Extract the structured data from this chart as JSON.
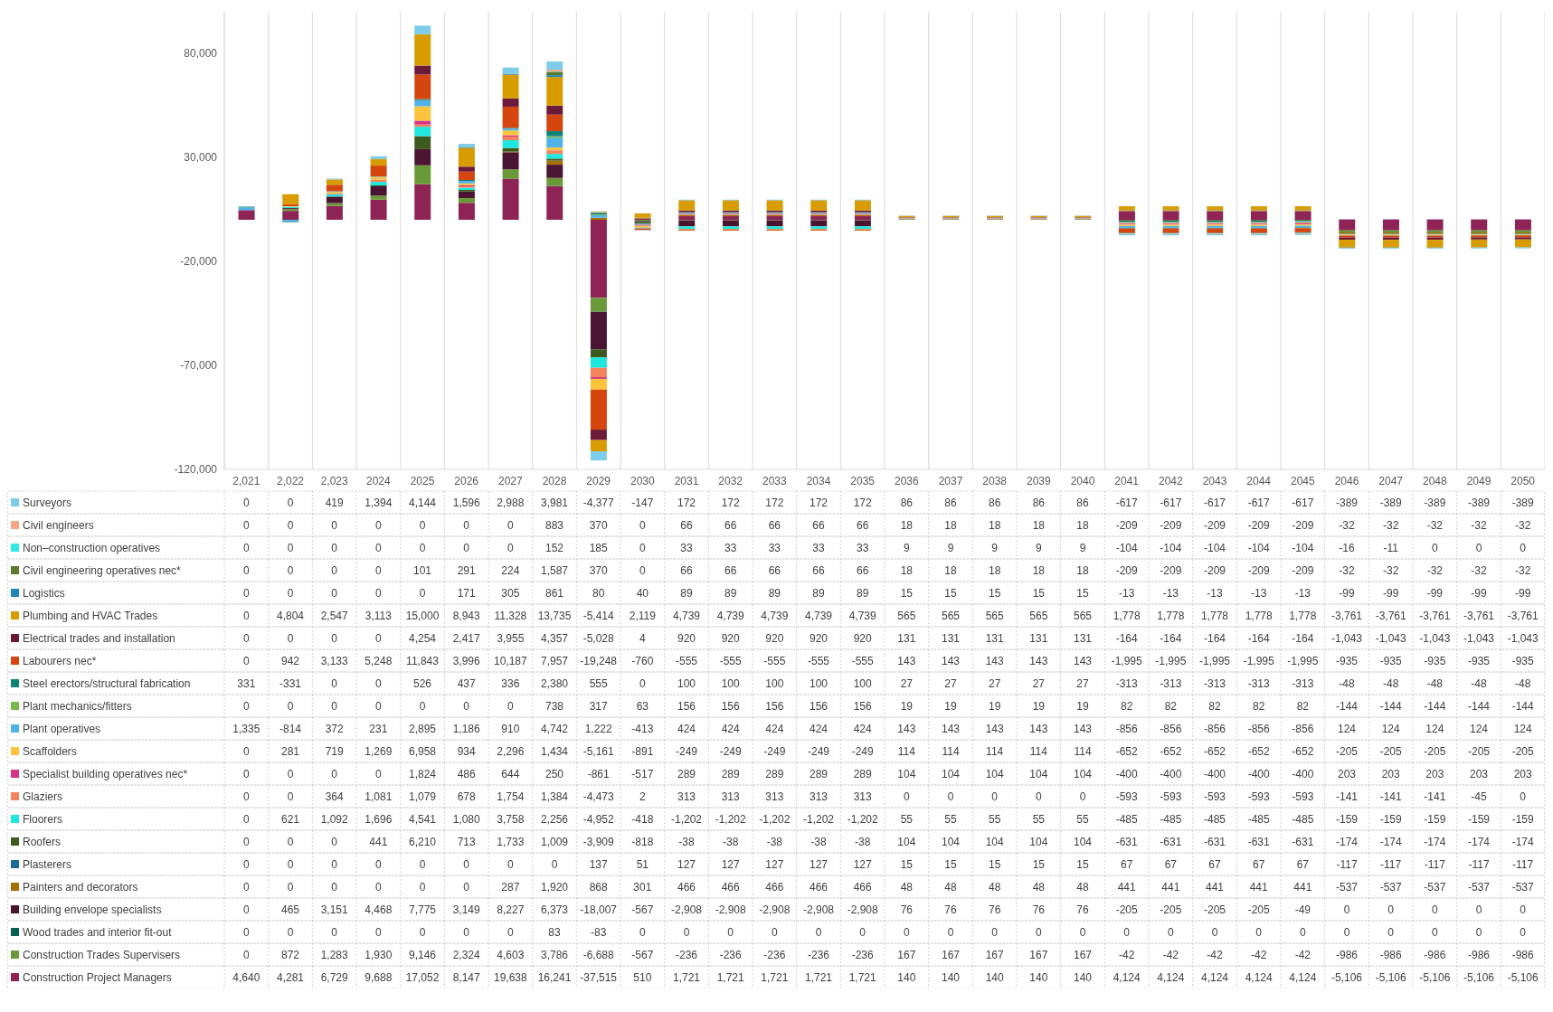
{
  "chart_data": {
    "type": "bar",
    "stacked": true,
    "legend": "bottom",
    "grid": "x",
    "categories": [
      "2,021",
      "2,022",
      "2,023",
      "2024",
      "2025",
      "2026",
      "2027",
      "2028",
      "2029",
      "2030",
      "2031",
      "2032",
      "2033",
      "2034",
      "2035",
      "2036",
      "2037",
      "2038",
      "2039",
      "2040",
      "2041",
      "2042",
      "2043",
      "2044",
      "2045",
      "2046",
      "2047",
      "2048",
      "2049",
      "2050"
    ],
    "ylim": [
      -120000,
      100000
    ],
    "yticks": [
      {
        "value": -120000,
        "label": "-120,000"
      },
      {
        "value": -70000,
        "label": "-70,000"
      },
      {
        "value": -20000,
        "label": "-20,000"
      },
      {
        "value": 30000,
        "label": "30,000"
      },
      {
        "value": 80000,
        "label": "80,000"
      }
    ],
    "series": [
      {
        "name": "Construction Project Managers",
        "color": "#8e2456",
        "values": [
          4640,
          4281,
          6729,
          9688,
          17052,
          8147,
          19638,
          16241,
          -37515,
          510,
          1721,
          1721,
          1721,
          1721,
          1721,
          140,
          140,
          140,
          140,
          140,
          4124,
          4124,
          4124,
          4124,
          4124,
          -5106,
          -5106,
          -5106,
          -5106,
          -5106
        ],
        "value_labels": [
          "4,640",
          "4,281",
          "6,729",
          "9,688",
          "17,052",
          "8,147",
          "19,638",
          "16,241",
          "-37,515",
          "510",
          "1,721",
          "1,721",
          "1,721",
          "1,721",
          "1,721",
          "140",
          "140",
          "140",
          "140",
          "140",
          "4,124",
          "4,124",
          "4,124",
          "4,124",
          "4,124",
          "-5,106",
          "-5,106",
          "-5,106",
          "-5,106",
          "-5,106"
        ]
      },
      {
        "name": "Construction Trades Supervisers",
        "color": "#6a9a38",
        "values": [
          0,
          872,
          1283,
          1930,
          9146,
          2324,
          4603,
          3786,
          -6688,
          -567,
          -236,
          -236,
          -236,
          -236,
          -236,
          167,
          167,
          167,
          167,
          167,
          -42,
          -42,
          -42,
          -42,
          -42,
          -986,
          -986,
          -986,
          -986,
          -986
        ],
        "value_labels": [
          "0",
          "872",
          "1,283",
          "1,930",
          "9,146",
          "2,324",
          "4,603",
          "3,786",
          "-6,688",
          "-567",
          "-236",
          "-236",
          "-236",
          "-236",
          "-236",
          "167",
          "167",
          "167",
          "167",
          "167",
          "-42",
          "-42",
          "-42",
          "-42",
          "-42",
          "-986",
          "-986",
          "-986",
          "-986",
          "-986"
        ]
      },
      {
        "name": "Wood trades and interior fit-out",
        "color": "#0b5e54",
        "values": [
          0,
          0,
          0,
          0,
          0,
          0,
          0,
          83,
          -83,
          0,
          0,
          0,
          0,
          0,
          0,
          0,
          0,
          0,
          0,
          0,
          0,
          0,
          0,
          0,
          0,
          0,
          0,
          0,
          0,
          0
        ],
        "value_labels": [
          "0",
          "0",
          "0",
          "0",
          "0",
          "0",
          "0",
          "83",
          "-83",
          "0",
          "0",
          "0",
          "0",
          "0",
          "0",
          "0",
          "0",
          "0",
          "0",
          "0",
          "0",
          "0",
          "0",
          "0",
          "0",
          "0",
          "0",
          "0",
          "0",
          "0"
        ]
      },
      {
        "name": "Building envelope specialists",
        "color": "#4a1530",
        "values": [
          0,
          465,
          3151,
          4468,
          7775,
          3149,
          8227,
          6373,
          -18007,
          -567,
          -2908,
          -2908,
          -2908,
          -2908,
          -2908,
          76,
          76,
          76,
          76,
          76,
          -205,
          -205,
          -205,
          -205,
          -49,
          0,
          0,
          0,
          0,
          0
        ],
        "value_labels": [
          "0",
          "465",
          "3,151",
          "4,468",
          "7,775",
          "3,149",
          "8,227",
          "6,373",
          "-18,007",
          "-567",
          "-2,908",
          "-2,908",
          "-2,908",
          "-2,908",
          "-2,908",
          "76",
          "76",
          "76",
          "76",
          "76",
          "-205",
          "-205",
          "-205",
          "-205",
          "-49",
          "0",
          "0",
          "0",
          "0",
          "0"
        ]
      },
      {
        "name": "Painters and decorators",
        "color": "#a86f00",
        "values": [
          0,
          0,
          0,
          0,
          0,
          0,
          287,
          1920,
          868,
          301,
          466,
          466,
          466,
          466,
          466,
          48,
          48,
          48,
          48,
          48,
          441,
          441,
          441,
          441,
          441,
          -537,
          -537,
          -537,
          -537,
          -537
        ],
        "value_labels": [
          "0",
          "0",
          "0",
          "0",
          "0",
          "0",
          "287",
          "1,920",
          "868",
          "301",
          "466",
          "466",
          "466",
          "466",
          "466",
          "48",
          "48",
          "48",
          "48",
          "48",
          "441",
          "441",
          "441",
          "441",
          "441",
          "-537",
          "-537",
          "-537",
          "-537",
          "-537"
        ]
      },
      {
        "name": "Plasterers",
        "color": "#1c6b94",
        "values": [
          0,
          0,
          0,
          0,
          0,
          0,
          0,
          0,
          137,
          51,
          127,
          127,
          127,
          127,
          127,
          15,
          15,
          15,
          15,
          15,
          67,
          67,
          67,
          67,
          67,
          -117,
          -117,
          -117,
          -117,
          -117
        ],
        "value_labels": [
          "0",
          "0",
          "0",
          "0",
          "0",
          "0",
          "0",
          "0",
          "137",
          "51",
          "127",
          "127",
          "127",
          "127",
          "127",
          "15",
          "15",
          "15",
          "15",
          "15",
          "67",
          "67",
          "67",
          "67",
          "67",
          "-117",
          "-117",
          "-117",
          "-117",
          "-117"
        ]
      },
      {
        "name": "Roofers",
        "color": "#3d5a1e",
        "values": [
          0,
          0,
          0,
          441,
          6210,
          713,
          1733,
          1009,
          -3909,
          -818,
          -38,
          -38,
          -38,
          -38,
          -38,
          104,
          104,
          104,
          104,
          104,
          -631,
          -631,
          -631,
          -631,
          -631,
          -174,
          -174,
          -174,
          -174,
          -174
        ],
        "value_labels": [
          "0",
          "0",
          "0",
          "441",
          "6,210",
          "713",
          "1,733",
          "1,009",
          "-3,909",
          "-818",
          "-38",
          "-38",
          "-38",
          "-38",
          "-38",
          "104",
          "104",
          "104",
          "104",
          "104",
          "-631",
          "-631",
          "-631",
          "-631",
          "-631",
          "-174",
          "-174",
          "-174",
          "-174",
          "-174"
        ]
      },
      {
        "name": "Floorers",
        "color": "#1ee6e0",
        "values": [
          0,
          621,
          1092,
          1696,
          4541,
          1080,
          3758,
          2256,
          -4952,
          -418,
          -1202,
          -1202,
          -1202,
          -1202,
          -1202,
          55,
          55,
          55,
          55,
          55,
          -485,
          -485,
          -485,
          -485,
          -485,
          -159,
          -159,
          -159,
          -159,
          -159
        ],
        "value_labels": [
          "0",
          "621",
          "1,092",
          "1,696",
          "4,541",
          "1,080",
          "3,758",
          "2,256",
          "-4,952",
          "-418",
          "-1,202",
          "-1,202",
          "-1,202",
          "-1,202",
          "-1,202",
          "55",
          "55",
          "55",
          "55",
          "55",
          "-485",
          "-485",
          "-485",
          "-485",
          "-485",
          "-159",
          "-159",
          "-159",
          "-159",
          "-159"
        ]
      },
      {
        "name": "Glaziers",
        "color": "#f4845c",
        "values": [
          0,
          0,
          364,
          1081,
          1079,
          678,
          1754,
          1384,
          -4473,
          2,
          313,
          313,
          313,
          313,
          313,
          0,
          0,
          0,
          0,
          0,
          -593,
          -593,
          -593,
          -593,
          -593,
          -141,
          -141,
          -141,
          -45,
          0
        ],
        "value_labels": [
          "0",
          "0",
          "364",
          "1,081",
          "1,079",
          "678",
          "1,754",
          "1,384",
          "-4,473",
          "2",
          "313",
          "313",
          "313",
          "313",
          "313",
          "0",
          "0",
          "0",
          "0",
          "0",
          "-593",
          "-593",
          "-593",
          "-593",
          "-593",
          "-141",
          "-141",
          "-141",
          "-45",
          "0"
        ]
      },
      {
        "name": "Specialist building operatives nec*",
        "color": "#d63384",
        "values": [
          0,
          0,
          0,
          0,
          1824,
          486,
          644,
          250,
          -861,
          -517,
          289,
          289,
          289,
          289,
          289,
          104,
          104,
          104,
          104,
          104,
          -400,
          -400,
          -400,
          -400,
          -400,
          203,
          203,
          203,
          203,
          203
        ],
        "value_labels": [
          "0",
          "0",
          "0",
          "0",
          "1,824",
          "486",
          "644",
          "250",
          "-861",
          "-517",
          "289",
          "289",
          "289",
          "289",
          "289",
          "104",
          "104",
          "104",
          "104",
          "104",
          "-400",
          "-400",
          "-400",
          "-400",
          "-400",
          "203",
          "203",
          "203",
          "203",
          "203"
        ]
      },
      {
        "name": "Scaffolders",
        "color": "#fcc43c",
        "values": [
          0,
          281,
          719,
          1269,
          6958,
          934,
          2296,
          1434,
          -5161,
          -891,
          -249,
          -249,
          -249,
          -249,
          -249,
          114,
          114,
          114,
          114,
          114,
          -652,
          -652,
          -652,
          -652,
          -652,
          -205,
          -205,
          -205,
          -205,
          -205
        ],
        "value_labels": [
          "0",
          "281",
          "719",
          "1,269",
          "6,958",
          "934",
          "2,296",
          "1,434",
          "-5,161",
          "-891",
          "-249",
          "-249",
          "-249",
          "-249",
          "-249",
          "114",
          "114",
          "114",
          "114",
          "114",
          "-652",
          "-652",
          "-652",
          "-652",
          "-652",
          "-205",
          "-205",
          "-205",
          "-205",
          "-205"
        ]
      },
      {
        "name": "Plant operatives",
        "color": "#4fb3e8",
        "values": [
          1335,
          -814,
          372,
          231,
          2895,
          1186,
          910,
          4742,
          1222,
          -413,
          424,
          424,
          424,
          424,
          424,
          143,
          143,
          143,
          143,
          143,
          -856,
          -856,
          -856,
          -856,
          -856,
          124,
          124,
          124,
          124,
          124
        ],
        "value_labels": [
          "1,335",
          "-814",
          "372",
          "231",
          "2,895",
          "1,186",
          "910",
          "4,742",
          "1,222",
          "-413",
          "424",
          "424",
          "424",
          "424",
          "424",
          "143",
          "143",
          "143",
          "143",
          "143",
          "-856",
          "-856",
          "-856",
          "-856",
          "-856",
          "124",
          "124",
          "124",
          "124",
          "124"
        ]
      },
      {
        "name": "Plant mechanics/fitters",
        "color": "#7ab648",
        "values": [
          0,
          0,
          0,
          0,
          0,
          0,
          0,
          738,
          317,
          63,
          156,
          156,
          156,
          156,
          156,
          19,
          19,
          19,
          19,
          19,
          82,
          82,
          82,
          82,
          82,
          -144,
          -144,
          -144,
          -144,
          -144
        ],
        "value_labels": [
          "0",
          "0",
          "0",
          "0",
          "0",
          "0",
          "0",
          "738",
          "317",
          "63",
          "156",
          "156",
          "156",
          "156",
          "156",
          "19",
          "19",
          "19",
          "19",
          "19",
          "82",
          "82",
          "82",
          "82",
          "82",
          "-144",
          "-144",
          "-144",
          "-144",
          "-144"
        ]
      },
      {
        "name": "Steel erectors/structural fabrication",
        "color": "#0f8278",
        "values": [
          331,
          -331,
          0,
          0,
          526,
          437,
          336,
          2380,
          555,
          0,
          100,
          100,
          100,
          100,
          100,
          27,
          27,
          27,
          27,
          27,
          -313,
          -313,
          -313,
          -313,
          -313,
          -48,
          -48,
          -48,
          -48,
          -48
        ],
        "value_labels": [
          "331",
          "-331",
          "0",
          "0",
          "526",
          "437",
          "336",
          "2,380",
          "555",
          "0",
          "100",
          "100",
          "100",
          "100",
          "100",
          "27",
          "27",
          "27",
          "27",
          "27",
          "-313",
          "-313",
          "-313",
          "-313",
          "-313",
          "-48",
          "-48",
          "-48",
          "-48",
          "-48"
        ]
      },
      {
        "name": "Labourers nec*",
        "color": "#d4460e",
        "values": [
          0,
          942,
          3133,
          5248,
          11843,
          3996,
          10187,
          7957,
          -19248,
          -760,
          -555,
          -555,
          -555,
          -555,
          -555,
          143,
          143,
          143,
          143,
          143,
          -1995,
          -1995,
          -1995,
          -1995,
          -1995,
          -935,
          -935,
          -935,
          -935,
          -935
        ],
        "value_labels": [
          "0",
          "942",
          "3,133",
          "5,248",
          "11,843",
          "3,996",
          "10,187",
          "7,957",
          "-19,248",
          "-760",
          "-555",
          "-555",
          "-555",
          "-555",
          "-555",
          "143",
          "143",
          "143",
          "143",
          "143",
          "-1,995",
          "-1,995",
          "-1,995",
          "-1,995",
          "-1,995",
          "-935",
          "-935",
          "-935",
          "-935",
          "-935"
        ]
      },
      {
        "name": "Electrical trades and installation",
        "color": "#6b1a3a",
        "values": [
          0,
          0,
          0,
          0,
          4254,
          2417,
          3955,
          4357,
          -5028,
          4,
          920,
          920,
          920,
          920,
          920,
          131,
          131,
          131,
          131,
          131,
          -164,
          -164,
          -164,
          -164,
          -164,
          -1043,
          -1043,
          -1043,
          -1043,
          -1043
        ],
        "value_labels": [
          "0",
          "0",
          "0",
          "0",
          "4,254",
          "2,417",
          "3,955",
          "4,357",
          "-5,028",
          "4",
          "920",
          "920",
          "920",
          "920",
          "920",
          "131",
          "131",
          "131",
          "131",
          "131",
          "-164",
          "-164",
          "-164",
          "-164",
          "-164",
          "-1,043",
          "-1,043",
          "-1,043",
          "-1,043",
          "-1,043"
        ]
      },
      {
        "name": "Plumbing and HVAC Trades",
        "color": "#d99c00",
        "values": [
          0,
          4804,
          2547,
          3113,
          15000,
          8943,
          11328,
          13735,
          -5414,
          2119,
          4739,
          4739,
          4739,
          4739,
          4739,
          565,
          565,
          565,
          565,
          565,
          1778,
          1778,
          1778,
          1778,
          1778,
          -3761,
          -3761,
          -3761,
          -3761,
          -3761
        ],
        "value_labels": [
          "0",
          "4,804",
          "2,547",
          "3,113",
          "15,000",
          "8,943",
          "11,328",
          "13,735",
          "-5,414",
          "2,119",
          "4,739",
          "4,739",
          "4,739",
          "4,739",
          "4,739",
          "565",
          "565",
          "565",
          "565",
          "565",
          "1,778",
          "1,778",
          "1,778",
          "1,778",
          "1,778",
          "-3,761",
          "-3,761",
          "-3,761",
          "-3,761",
          "-3,761"
        ]
      },
      {
        "name": "Logistics",
        "color": "#1f86b8",
        "values": [
          0,
          0,
          0,
          0,
          0,
          171,
          305,
          861,
          80,
          40,
          89,
          89,
          89,
          89,
          89,
          15,
          15,
          15,
          15,
          15,
          -13,
          -13,
          -13,
          -13,
          -13,
          -99,
          -99,
          -99,
          -99,
          -99
        ],
        "value_labels": [
          "0",
          "0",
          "0",
          "0",
          "0",
          "171",
          "305",
          "861",
          "80",
          "40",
          "89",
          "89",
          "89",
          "89",
          "89",
          "15",
          "15",
          "15",
          "15",
          "15",
          "-13",
          "-13",
          "-13",
          "-13",
          "-13",
          "-99",
          "-99",
          "-99",
          "-99",
          "-99"
        ]
      },
      {
        "name": "Civil engineering operatives nec*",
        "color": "#5a7a2e",
        "values": [
          0,
          0,
          0,
          0,
          101,
          291,
          224,
          1587,
          370,
          0,
          66,
          66,
          66,
          66,
          66,
          18,
          18,
          18,
          18,
          18,
          -209,
          -209,
          -209,
          -209,
          -209,
          -32,
          -32,
          -32,
          -32,
          -32
        ],
        "value_labels": [
          "0",
          "0",
          "0",
          "0",
          "101",
          "291",
          "224",
          "1,587",
          "370",
          "0",
          "66",
          "66",
          "66",
          "66",
          "66",
          "18",
          "18",
          "18",
          "18",
          "18",
          "-209",
          "-209",
          "-209",
          "-209",
          "-209",
          "-32",
          "-32",
          "-32",
          "-32",
          "-32"
        ]
      },
      {
        "name": "Non–construction operatives",
        "color": "#33e6e6",
        "values": [
          0,
          0,
          0,
          0,
          0,
          0,
          0,
          152,
          185,
          0,
          33,
          33,
          33,
          33,
          33,
          9,
          9,
          9,
          9,
          9,
          -104,
          -104,
          -104,
          -104,
          -104,
          -16,
          -11,
          0,
          0,
          0
        ],
        "value_labels": [
          "0",
          "0",
          "0",
          "0",
          "0",
          "0",
          "0",
          "152",
          "185",
          "0",
          "33",
          "33",
          "33",
          "33",
          "33",
          "9",
          "9",
          "9",
          "9",
          "9",
          "-104",
          "-104",
          "-104",
          "-104",
          "-104",
          "-16",
          "-11",
          "0",
          "0",
          "0"
        ]
      },
      {
        "name": "Civil engineers",
        "color": "#f4a582",
        "values": [
          0,
          0,
          0,
          0,
          0,
          0,
          0,
          883,
          370,
          0,
          66,
          66,
          66,
          66,
          66,
          18,
          18,
          18,
          18,
          18,
          -209,
          -209,
          -209,
          -209,
          -209,
          -32,
          -32,
          -32,
          -32,
          -32
        ],
        "value_labels": [
          "0",
          "0",
          "0",
          "0",
          "0",
          "0",
          "0",
          "883",
          "370",
          "0",
          "66",
          "66",
          "66",
          "66",
          "66",
          "18",
          "18",
          "18",
          "18",
          "18",
          "-209",
          "-209",
          "-209",
          "-209",
          "-209",
          "-32",
          "-32",
          "-32",
          "-32",
          "-32"
        ]
      },
      {
        "name": "Surveyors",
        "color": "#7dcdea",
        "values": [
          0,
          0,
          419,
          1394,
          4144,
          1596,
          2988,
          3981,
          -4377,
          -147,
          172,
          172,
          172,
          172,
          172,
          86,
          86,
          86,
          86,
          86,
          -617,
          -617,
          -617,
          -617,
          -617,
          -389,
          -389,
          -389,
          -389,
          -389
        ],
        "value_labels": [
          "0",
          "0",
          "419",
          "1,394",
          "4,144",
          "1,596",
          "2,988",
          "3,981",
          "-4,377",
          "-147",
          "172",
          "172",
          "172",
          "172",
          "172",
          "86",
          "86",
          "86",
          "86",
          "86",
          "-617",
          "-617",
          "-617",
          "-617",
          "-617",
          "-389",
          "-389",
          "-389",
          "-389",
          "-389"
        ]
      }
    ]
  }
}
